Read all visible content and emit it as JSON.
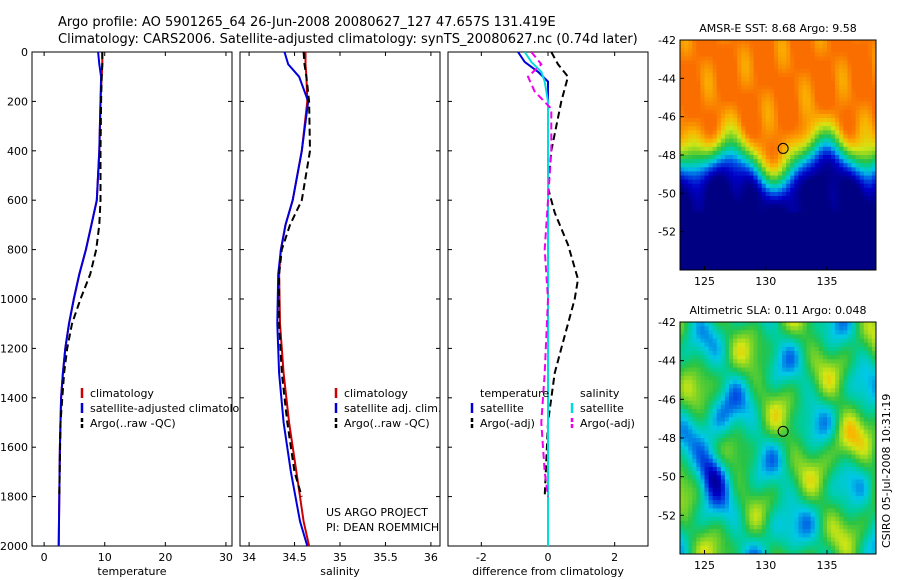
{
  "header": {
    "line1": "Argo profile: AO 5901265_64 26-Jun-2008 20080627_127 47.657S 131.419E",
    "line2": "Climatology: CARS2006. Satellite-adjusted climatology: synTS_20080627.nc (0.74d later)"
  },
  "credit": {
    "project": "US ARGO PROJECT",
    "pi": "PI: DEAN ROEMMICH",
    "stamp": "CSIRO 05-Jul-2008 10:31:19"
  },
  "colors": {
    "climatology": "#cc0000",
    "satellite": "#0000dd",
    "argo": "#000000",
    "satellite_salinity": "#00dddd",
    "argo_salinity": "#ee00ee"
  },
  "chart_data": [
    {
      "id": "temperature",
      "type": "line",
      "xlabel": "temperature",
      "ylabel": "",
      "xlim": [
        -2,
        31
      ],
      "ylim": [
        2000,
        0
      ],
      "xticks": [
        0,
        10,
        20,
        30
      ],
      "yticks": [
        0,
        200,
        400,
        600,
        800,
        1000,
        1200,
        1400,
        1600,
        1800,
        2000
      ],
      "legend": [
        "climatology",
        "satellite-adjusted climatology",
        "Argo(..raw -QC)"
      ],
      "series": [
        {
          "name": "climatology",
          "color": "#cc0000",
          "dash": false,
          "x": [
            9.6,
            9.6,
            9.5,
            9.3,
            9.1,
            8.7,
            7.8,
            6.9,
            5.8,
            4.9,
            4.1,
            3.5,
            3.1,
            2.8,
            2.6,
            2.5,
            2.4
          ],
          "y": [
            0,
            50,
            100,
            200,
            400,
            600,
            700,
            800,
            900,
            1000,
            1100,
            1200,
            1300,
            1400,
            1600,
            1800,
            2000
          ]
        },
        {
          "name": "satellite-adjusted climatology",
          "color": "#0000dd",
          "dash": false,
          "x": [
            8.9,
            9.1,
            9.4,
            9.3,
            9.1,
            8.7,
            7.8,
            6.9,
            5.8,
            4.9,
            4.1,
            3.5,
            3.1,
            2.8,
            2.6,
            2.5,
            2.4
          ],
          "y": [
            0,
            50,
            100,
            200,
            400,
            600,
            700,
            800,
            900,
            1000,
            1100,
            1200,
            1300,
            1400,
            1600,
            1800,
            2000
          ]
        },
        {
          "name": "Argo(..raw -QC)",
          "color": "#000000",
          "dash": true,
          "x": [
            9.6,
            9.6,
            9.5,
            9.4,
            9.3,
            9.3,
            9.1,
            8.6,
            7.6,
            6.0,
            4.6,
            3.8,
            3.3,
            2.7,
            2.5
          ],
          "y": [
            0,
            50,
            100,
            200,
            400,
            600,
            700,
            800,
            900,
            1000,
            1100,
            1200,
            1300,
            1500,
            1800
          ]
        }
      ]
    },
    {
      "id": "salinity",
      "type": "line",
      "xlabel": "salinity",
      "ylabel": "",
      "xlim": [
        33.9,
        36.1
      ],
      "ylim": [
        2000,
        0
      ],
      "xticks": [
        34,
        34.5,
        35,
        35.5,
        36
      ],
      "xticklabels": [
        "34",
        "34.5",
        "35",
        "35.5",
        "36"
      ],
      "legend": [
        "climatology",
        "satellite adj. clim.",
        "Argo(..raw -QC)"
      ],
      "series": [
        {
          "name": "climatology",
          "color": "#cc0000",
          "dash": false,
          "x": [
            34.62,
            34.62,
            34.63,
            34.64,
            34.58,
            34.48,
            34.4,
            34.35,
            34.33,
            34.34,
            34.38,
            34.44,
            34.52,
            34.6,
            34.66
          ],
          "y": [
            0,
            50,
            100,
            200,
            400,
            600,
            700,
            800,
            900,
            1100,
            1300,
            1500,
            1700,
            1900,
            2000
          ]
        },
        {
          "name": "satellite adj. clim.",
          "color": "#0000dd",
          "dash": false,
          "x": [
            34.39,
            34.43,
            34.55,
            34.65,
            34.58,
            34.48,
            34.4,
            34.35,
            34.32,
            34.31,
            34.33,
            34.38,
            34.46,
            34.56,
            34.64
          ],
          "y": [
            0,
            50,
            100,
            200,
            400,
            600,
            700,
            800,
            900,
            1100,
            1300,
            1500,
            1700,
            1900,
            2000
          ]
        },
        {
          "name": "Argo(..raw -QC)",
          "color": "#000000",
          "dash": true,
          "x": [
            34.6,
            34.61,
            34.63,
            34.66,
            34.67,
            34.58,
            34.45,
            34.36,
            34.33,
            34.33,
            34.36,
            34.42,
            34.5,
            34.58
          ],
          "y": [
            0,
            50,
            100,
            200,
            400,
            600,
            700,
            800,
            900,
            1100,
            1300,
            1500,
            1700,
            1800
          ]
        }
      ]
    },
    {
      "id": "difference",
      "type": "line",
      "xlabel": "difference from climatology",
      "ylabel": "",
      "xlim": [
        -3,
        3
      ],
      "ylim": [
        2000,
        0
      ],
      "xticks": [
        -2,
        0,
        2
      ],
      "legend_groups": [
        {
          "title": "temperature",
          "items": [
            "satellite",
            "Argo(-adj)"
          ]
        },
        {
          "title": "salinity",
          "items": [
            "satellite",
            "Argo(-adj)"
          ]
        }
      ],
      "series": [
        {
          "name": "temperature satellite",
          "color": "#0000dd",
          "dash": false,
          "x": [
            -0.9,
            -0.7,
            -0.3,
            0.0,
            0.0,
            0.0,
            0.0,
            0.0,
            0.0,
            0.0,
            0.0,
            0.0
          ],
          "y": [
            0,
            40,
            80,
            120,
            200,
            400,
            600,
            800,
            1000,
            1400,
            1800,
            2000
          ]
        },
        {
          "name": "temperature Argo(-adj)",
          "color": "#000000",
          "dash": true,
          "x": [
            0.1,
            0.3,
            0.6,
            0.4,
            0.1,
            0.0,
            0.2,
            0.6,
            0.9,
            0.8,
            0.6,
            0.4,
            0.2,
            0.0,
            -0.1
          ],
          "y": [
            0,
            50,
            100,
            200,
            400,
            550,
            650,
            780,
            920,
            1000,
            1100,
            1200,
            1300,
            1500,
            1800
          ]
        },
        {
          "name": "salinity satellite",
          "color": "#00dddd",
          "dash": false,
          "x": [
            -0.7,
            -0.5,
            -0.2,
            -0.1,
            0.0,
            0.0,
            0.0,
            0.0,
            0.0,
            0.0,
            0.0,
            0.0
          ],
          "y": [
            0,
            40,
            80,
            120,
            200,
            400,
            600,
            800,
            1000,
            1400,
            1800,
            2000
          ]
        },
        {
          "name": "salinity Argo(-adj)",
          "color": "#ee00ee",
          "dash": true,
          "x": [
            -0.5,
            -0.2,
            -0.6,
            -0.4,
            0.1,
            0.1,
            0.0,
            -0.1,
            0.0,
            -0.1,
            -0.2,
            -0.1,
            0.0
          ],
          "y": [
            0,
            50,
            100,
            160,
            230,
            400,
            600,
            800,
            1000,
            1300,
            1500,
            1700,
            1800
          ]
        }
      ]
    },
    {
      "id": "sst_map",
      "type": "heatmap",
      "title": "AMSR-E SST: 8.68 Argo: 9.58",
      "xlim": [
        123,
        139
      ],
      "ylim": [
        -54,
        -42
      ],
      "xticks": [
        125,
        130,
        135
      ],
      "yticks": [
        -42,
        -44,
        -46,
        -48,
        -50,
        -52
      ],
      "marker": {
        "lon": 131.419,
        "lat": -47.657
      }
    },
    {
      "id": "sla_map",
      "type": "heatmap",
      "title": "Altimetric SLA: 0.11 Argo: 0.048",
      "xlim": [
        123,
        139
      ],
      "ylim": [
        -54,
        -42
      ],
      "xticks": [
        125,
        130,
        135
      ],
      "yticks": [
        -42,
        -44,
        -46,
        -48,
        -50,
        -52
      ],
      "marker": {
        "lon": 131.419,
        "lat": -47.657
      }
    }
  ]
}
